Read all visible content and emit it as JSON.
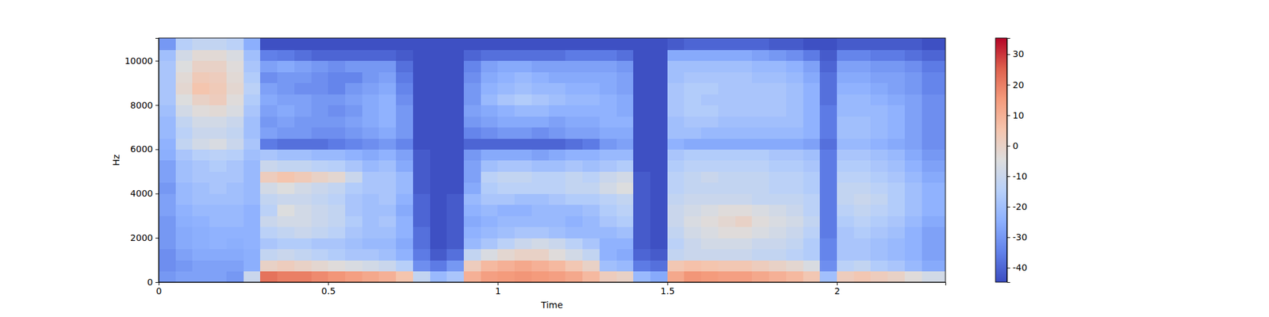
{
  "chart_data": {
    "type": "heatmap",
    "x_label": "Time",
    "y_label": "Hz",
    "xlim": [
      0,
      2.32
    ],
    "ylim": [
      0,
      11025
    ],
    "xticks": [
      0,
      0.5,
      1,
      1.5,
      2
    ],
    "yticks": [
      0,
      2000,
      4000,
      6000,
      8000,
      10000
    ],
    "x_edges": [
      0,
      0.05,
      0.1,
      0.15,
      0.2,
      0.25,
      0.3,
      0.35,
      0.4,
      0.45,
      0.5,
      0.55,
      0.6,
      0.65,
      0.7,
      0.75,
      0.8,
      0.85,
      0.9,
      0.95,
      1,
      1.05,
      1.1,
      1.15,
      1.2,
      1.25,
      1.3,
      1.35,
      1.4,
      1.45,
      1.5,
      1.55,
      1.6,
      1.65,
      1.7,
      1.75,
      1.8,
      1.85,
      1.9,
      1.95,
      2,
      2.05,
      2.1,
      2.15,
      2.2,
      2.25,
      2.32
    ],
    "y_edges": [
      0,
      500,
      1000,
      1500,
      2000,
      2500,
      3000,
      3500,
      4000,
      4500,
      5000,
      5500,
      6000,
      6500,
      7000,
      7500,
      8000,
      8500,
      9000,
      9500,
      10000,
      10500,
      11025
    ],
    "z": [
      [
        -30,
        -32,
        -32,
        -30,
        -30,
        -30,
        -28,
        -28,
        -30,
        -28,
        -28,
        -25,
        -24,
        -22,
        -22,
        -20,
        -18,
        -18,
        -18,
        -18,
        -20,
        -30
      ],
      [
        -28,
        -30,
        -28,
        -26,
        -26,
        -25,
        -24,
        -22,
        -22,
        -20,
        -20,
        -18,
        -12,
        -14,
        -12,
        -8,
        -5,
        -2,
        -3,
        -5,
        -8,
        -15
      ],
      [
        -28,
        -28,
        -26,
        -25,
        -25,
        -24,
        -22,
        -20,
        -20,
        -18,
        -18,
        -15,
        -8,
        -10,
        -8,
        -4,
        0,
        5,
        3,
        0,
        -3,
        -12
      ],
      [
        -28,
        -28,
        -26,
        -24,
        -24,
        -22,
        -22,
        -20,
        -18,
        -18,
        -16,
        -14,
        -6,
        -10,
        -8,
        -3,
        2,
        3,
        2,
        0,
        -3,
        -12
      ],
      [
        -30,
        -28,
        -26,
        -25,
        -24,
        -22,
        -22,
        -20,
        -20,
        -18,
        -18,
        -15,
        -10,
        -12,
        -10,
        -6,
        -4,
        -2,
        -3,
        -4,
        -6,
        -14
      ],
      [
        -10,
        -25,
        -25,
        -24,
        -24,
        -24,
        -24,
        -22,
        -22,
        -22,
        -22,
        -20,
        -18,
        -20,
        -20,
        -18,
        -16,
        -14,
        -16,
        -18,
        -20,
        -25
      ],
      [
        22,
        0,
        -12,
        -18,
        -14,
        -10,
        -14,
        -12,
        -8,
        2,
        -10,
        -18,
        -36,
        -28,
        -30,
        -28,
        -26,
        -28,
        -32,
        -28,
        -35,
        -44
      ],
      [
        20,
        2,
        -10,
        -16,
        -12,
        -8,
        -5,
        -10,
        -5,
        5,
        -12,
        -20,
        -38,
        -30,
        -28,
        -26,
        -28,
        -30,
        -30,
        -26,
        -36,
        -44
      ],
      [
        20,
        0,
        -12,
        -16,
        -10,
        -8,
        -8,
        -10,
        -8,
        3,
        -12,
        -20,
        -38,
        -30,
        -30,
        -28,
        -28,
        -32,
        -30,
        -28,
        -38,
        -44
      ],
      [
        18,
        -2,
        -14,
        -18,
        -12,
        -10,
        -10,
        -12,
        -10,
        0,
        -14,
        -22,
        -38,
        -32,
        -30,
        -30,
        -30,
        -32,
        -32,
        -30,
        -40,
        -44
      ],
      [
        16,
        -4,
        -16,
        -18,
        -14,
        -12,
        -12,
        -14,
        -12,
        -2,
        -15,
        -22,
        -36,
        -32,
        -30,
        -32,
        -30,
        -34,
        -34,
        -32,
        -40,
        -44
      ],
      [
        14,
        -6,
        -18,
        -20,
        -18,
        -16,
        -18,
        -18,
        -16,
        -10,
        -18,
        -24,
        -34,
        -30,
        -28,
        -30,
        -28,
        -30,
        -34,
        -30,
        -40,
        -44
      ],
      [
        12,
        -8,
        -18,
        -22,
        -20,
        -20,
        -20,
        -20,
        -18,
        -18,
        -22,
        -26,
        -32,
        -28,
        -26,
        -26,
        -26,
        -28,
        -30,
        -30,
        -40,
        -44
      ],
      [
        10,
        -10,
        -20,
        -22,
        -20,
        -18,
        -20,
        -18,
        -18,
        -18,
        -20,
        -24,
        -30,
        -26,
        -24,
        -24,
        -24,
        -26,
        -28,
        -30,
        -40,
        -44
      ],
      [
        5,
        -15,
        -24,
        -26,
        -24,
        -24,
        -26,
        -24,
        -22,
        -22,
        -26,
        -28,
        -34,
        -30,
        -30,
        -30,
        -32,
        -34,
        -36,
        -38,
        -42,
        -44
      ],
      [
        -12,
        -32,
        -36,
        -38,
        -38,
        -40,
        -40,
        -40,
        -42,
        -42,
        -42,
        -42,
        -44,
        -44,
        -44,
        -44,
        -44,
        -44,
        -44,
        -44,
        -44,
        -44
      ],
      [
        -22,
        -36,
        -42,
        -44,
        -44,
        -44,
        -44,
        -44,
        -44,
        -44,
        -44,
        -44,
        -44,
        -44,
        -44,
        -44,
        -44,
        -44,
        -44,
        -44,
        -44,
        -44
      ],
      [
        -18,
        -30,
        -38,
        -42,
        -42,
        -42,
        -42,
        -42,
        -44,
        -44,
        -44,
        -44,
        -44,
        -44,
        -44,
        -44,
        -44,
        -44,
        -44,
        -44,
        -44,
        -44
      ],
      [
        10,
        2,
        -12,
        -22,
        -24,
        -26,
        -24,
        -22,
        -26,
        -28,
        -28,
        -30,
        -40,
        -34,
        -30,
        -28,
        -30,
        -30,
        -32,
        -34,
        -40,
        -44
      ],
      [
        14,
        8,
        -6,
        -18,
        -22,
        -24,
        -22,
        -18,
        -16,
        -14,
        -20,
        -26,
        -40,
        -32,
        -28,
        -26,
        -22,
        -24,
        -26,
        -28,
        -38,
        -44
      ],
      [
        15,
        10,
        -2,
        -14,
        -20,
        -22,
        -24,
        -18,
        -14,
        -12,
        -18,
        -26,
        -40,
        -30,
        -26,
        -24,
        -18,
        -22,
        -24,
        -26,
        -38,
        -44
      ],
      [
        16,
        12,
        0,
        -10,
        -18,
        -22,
        -24,
        -20,
        -14,
        -12,
        -18,
        -26,
        -40,
        -30,
        -26,
        -22,
        -16,
        -20,
        -22,
        -26,
        -38,
        -44
      ],
      [
        15,
        10,
        0,
        -8,
        -18,
        -22,
        -22,
        -20,
        -14,
        -14,
        -20,
        -28,
        -40,
        -32,
        -26,
        -22,
        -18,
        -22,
        -24,
        -28,
        -38,
        -44
      ],
      [
        14,
        8,
        -4,
        -10,
        -20,
        -22,
        -22,
        -18,
        -14,
        -14,
        -20,
        -26,
        -40,
        -30,
        -28,
        -24,
        -20,
        -22,
        -26,
        -28,
        -38,
        -44
      ],
      [
        12,
        4,
        -8,
        -14,
        -22,
        -24,
        -22,
        -16,
        -12,
        -12,
        -18,
        -24,
        -38,
        -28,
        -26,
        -24,
        -22,
        -24,
        -26,
        -28,
        -36,
        -44
      ],
      [
        8,
        0,
        -12,
        -18,
        -22,
        -22,
        -20,
        -16,
        -12,
        -14,
        -20,
        -24,
        -36,
        -28,
        -26,
        -24,
        -22,
        -24,
        -26,
        -28,
        -36,
        -44
      ],
      [
        2,
        -20,
        -24,
        -24,
        -22,
        -18,
        -16,
        -14,
        -8,
        -10,
        -18,
        -22,
        -30,
        -26,
        -24,
        -24,
        -24,
        -26,
        -26,
        -28,
        -36,
        -44
      ],
      [
        0,
        -22,
        -26,
        -24,
        -20,
        -16,
        -14,
        -12,
        -5,
        -8,
        -16,
        -22,
        -28,
        -26,
        -24,
        -26,
        -26,
        -28,
        -28,
        -30,
        -38,
        -44
      ],
      [
        -22,
        -36,
        -40,
        -42,
        -42,
        -42,
        -42,
        -42,
        -42,
        -42,
        -44,
        -44,
        -44,
        -44,
        -44,
        -44,
        -44,
        -44,
        -44,
        -44,
        -44,
        -44
      ],
      [
        -26,
        -38,
        -42,
        -44,
        -44,
        -44,
        -44,
        -44,
        -44,
        -44,
        -44,
        -44,
        -44,
        -44,
        -44,
        -44,
        -44,
        -44,
        -44,
        -44,
        -44,
        -44
      ],
      [
        12,
        4,
        -12,
        -14,
        -12,
        -10,
        -10,
        -12,
        -14,
        -14,
        -16,
        -18,
        -24,
        -20,
        -20,
        -18,
        -18,
        -18,
        -20,
        -20,
        -26,
        -42
      ],
      [
        16,
        6,
        -10,
        -10,
        -8,
        -6,
        -8,
        -10,
        -12,
        -12,
        -14,
        -16,
        -26,
        -20,
        -18,
        -16,
        -16,
        -16,
        -18,
        -20,
        -26,
        -40
      ],
      [
        15,
        5,
        -10,
        -8,
        -6,
        -4,
        -6,
        -10,
        -12,
        -10,
        -14,
        -16,
        -26,
        -22,
        -18,
        -16,
        -18,
        -16,
        -18,
        -20,
        -26,
        -40
      ],
      [
        14,
        4,
        -10,
        -8,
        -4,
        -2,
        -4,
        -10,
        -12,
        -12,
        -14,
        -16,
        -26,
        -22,
        -20,
        -18,
        -18,
        -18,
        -18,
        -20,
        -26,
        -40
      ],
      [
        14,
        4,
        -10,
        -8,
        -4,
        0,
        -4,
        -10,
        -12,
        -12,
        -14,
        -16,
        -26,
        -22,
        -20,
        -18,
        -18,
        -18,
        -18,
        -20,
        -26,
        -40
      ],
      [
        12,
        2,
        -12,
        -10,
        -6,
        -4,
        -6,
        -12,
        -12,
        -12,
        -14,
        -16,
        -26,
        -22,
        -20,
        -18,
        -18,
        -18,
        -20,
        -22,
        -28,
        -40
      ],
      [
        10,
        0,
        -12,
        -10,
        -8,
        -6,
        -8,
        -12,
        -14,
        -14,
        -16,
        -18,
        -26,
        -22,
        -20,
        -18,
        -18,
        -18,
        -20,
        -22,
        -30,
        -42
      ],
      [
        8,
        -2,
        -14,
        -12,
        -10,
        -8,
        -10,
        -12,
        -14,
        -14,
        -16,
        -18,
        -26,
        -22,
        -20,
        -20,
        -20,
        -20,
        -22,
        -24,
        -32,
        -42
      ],
      [
        4,
        -6,
        -16,
        -16,
        -14,
        -12,
        -14,
        -14,
        -16,
        -16,
        -18,
        -20,
        -28,
        -24,
        -24,
        -24,
        -24,
        -24,
        -26,
        -28,
        -36,
        -44
      ],
      [
        -20,
        -32,
        -34,
        -34,
        -36,
        -36,
        -36,
        -36,
        -36,
        -36,
        -36,
        -36,
        -38,
        -36,
        -36,
        -36,
        -38,
        -38,
        -38,
        -40,
        -42,
        -44
      ],
      [
        2,
        -14,
        -18,
        -18,
        -18,
        -16,
        -14,
        -12,
        -12,
        -14,
        -16,
        -18,
        -22,
        -20,
        -20,
        -22,
        -22,
        -24,
        -26,
        -28,
        -34,
        -42
      ],
      [
        4,
        -12,
        -18,
        -18,
        -16,
        -14,
        -12,
        -10,
        -12,
        -14,
        -16,
        -18,
        -22,
        -20,
        -20,
        -22,
        -22,
        -24,
        -26,
        -28,
        -34,
        -42
      ],
      [
        2,
        -16,
        -20,
        -20,
        -18,
        -16,
        -14,
        -12,
        -14,
        -16,
        -18,
        -20,
        -24,
        -22,
        -22,
        -22,
        -24,
        -26,
        -28,
        -30,
        -36,
        -42
      ],
      [
        0,
        -18,
        -22,
        -22,
        -20,
        -18,
        -16,
        -16,
        -16,
        -18,
        -20,
        -22,
        -26,
        -24,
        -24,
        -24,
        -26,
        -28,
        -28,
        -30,
        -36,
        -42
      ],
      [
        -4,
        -22,
        -24,
        -24,
        -24,
        -22,
        -20,
        -20,
        -20,
        -22,
        -24,
        -26,
        -28,
        -28,
        -28,
        -28,
        -28,
        -30,
        -30,
        -32,
        -38,
        -42
      ],
      [
        -8,
        -26,
        -28,
        -28,
        -28,
        -26,
        -24,
        -24,
        -24,
        -26,
        -28,
        -30,
        -32,
        -32,
        -32,
        -32,
        -32,
        -34,
        -34,
        -36,
        -40,
        -44
      ]
    ],
    "colorbar": {
      "lim": [
        -44.7,
        35.3
      ],
      "ticks": [
        -40,
        -30,
        -20,
        -10,
        0,
        10,
        20,
        30
      ]
    }
  }
}
